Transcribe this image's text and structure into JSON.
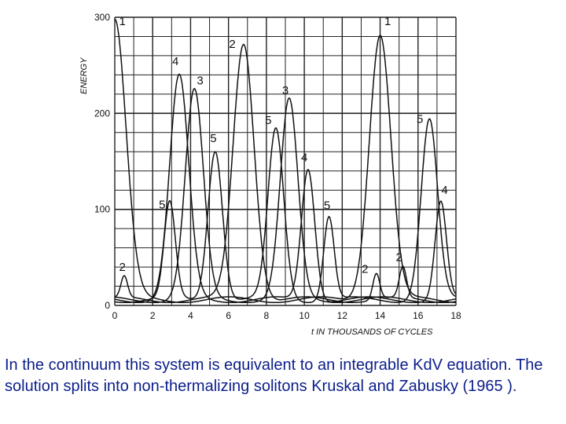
{
  "chart_data": {
    "type": "line",
    "ylabel": "ENERGY",
    "xlabel": "t IN THOUSANDS OF CYCLES",
    "xlim": [
      0,
      18
    ],
    "ylim": [
      0,
      300
    ],
    "x_ticks": [
      "0",
      "2",
      "4",
      "6",
      "8",
      "10",
      "12",
      "14",
      "16",
      "18"
    ],
    "y_ticks": [
      "0",
      "100",
      "200",
      "300"
    ],
    "grid": true,
    "series": [
      {
        "name": "1",
        "peaks": [
          [
            0,
            300
          ],
          [
            14,
            285
          ]
        ]
      },
      {
        "name": "2",
        "peaks": [
          [
            0.5,
            30
          ],
          [
            6.8,
            275
          ],
          [
            13.8,
            35
          ],
          [
            15.2,
            40
          ]
        ]
      },
      {
        "name": "3",
        "peaks": [
          [
            4.2,
            225
          ],
          [
            9.2,
            215
          ]
        ]
      },
      {
        "name": "4",
        "peaks": [
          [
            3.4,
            240
          ],
          [
            10.2,
            145
          ],
          [
            17.2,
            110
          ]
        ]
      },
      {
        "name": "5",
        "peaks": [
          [
            2.9,
            108
          ],
          [
            5.3,
            165
          ],
          [
            8.5,
            185
          ],
          [
            11.3,
            95
          ],
          [
            16.6,
            195
          ]
        ]
      }
    ],
    "peak_labels": [
      {
        "text": "1",
        "x": 0.4,
        "y": 292
      },
      {
        "text": "1",
        "x": 14.4,
        "y": 292
      },
      {
        "text": "2",
        "x": 6.2,
        "y": 268
      },
      {
        "text": "2",
        "x": 0.4,
        "y": 36
      },
      {
        "text": "2",
        "x": 13.2,
        "y": 34
      },
      {
        "text": "2",
        "x": 15.0,
        "y": 46
      },
      {
        "text": "3",
        "x": 4.5,
        "y": 230
      },
      {
        "text": "3",
        "x": 9.0,
        "y": 220
      },
      {
        "text": "4",
        "x": 3.2,
        "y": 250
      },
      {
        "text": "4",
        "x": 10.0,
        "y": 150
      },
      {
        "text": "4",
        "x": 17.4,
        "y": 116
      },
      {
        "text": "5",
        "x": 2.5,
        "y": 101
      },
      {
        "text": "5",
        "x": 5.2,
        "y": 170
      },
      {
        "text": "5",
        "x": 8.1,
        "y": 189
      },
      {
        "text": "5",
        "x": 11.2,
        "y": 100
      },
      {
        "text": "5",
        "x": 16.1,
        "y": 190
      }
    ]
  },
  "caption": "In the continuum this system is equivalent to an integrable KdV equation. The solution splits into non-thermalizing solitons Kruskal and Zabusky (1965 )."
}
